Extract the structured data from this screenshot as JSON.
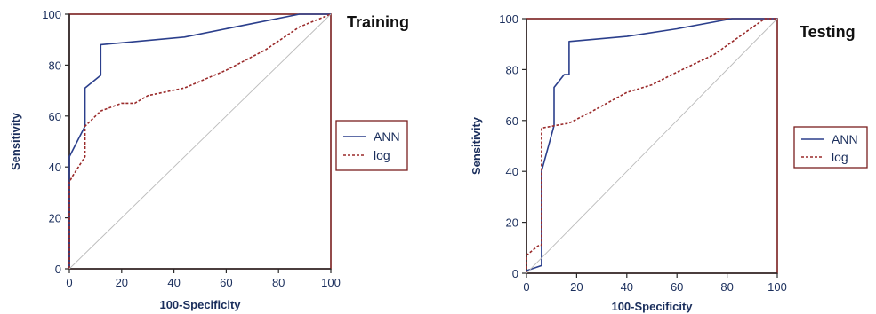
{
  "chart_data": [
    {
      "type": "line",
      "title": "Training",
      "xlabel": "100-Specificity",
      "ylabel": "Sensitivity",
      "xlim": [
        0,
        100
      ],
      "ylim": [
        0,
        100
      ],
      "xticks": [
        "0",
        "20",
        "40",
        "60",
        "80",
        "100"
      ],
      "yticks": [
        "0",
        "20",
        "40",
        "60",
        "80",
        "100"
      ],
      "grid": false,
      "legend_position": "right",
      "series": [
        {
          "name": "ANN",
          "color": "#2b3f8c",
          "style": "solid",
          "x": [
            0,
            0,
            6,
            6,
            12,
            12,
            44,
            88,
            100
          ],
          "y": [
            0,
            44,
            56,
            71,
            76,
            88,
            91,
            100,
            100
          ]
        },
        {
          "name": "log",
          "color": "#9a2a2a",
          "style": "dashed",
          "x": [
            0,
            0,
            1,
            6,
            6,
            12,
            20,
            25,
            30,
            44,
            60,
            75,
            88,
            100
          ],
          "y": [
            0,
            34,
            36,
            44,
            56,
            62,
            65,
            65,
            68,
            71,
            78,
            86,
            95,
            100
          ]
        },
        {
          "name": "reference",
          "color": "#bbbbbb",
          "style": "solid",
          "x": [
            0,
            100
          ],
          "y": [
            0,
            100
          ]
        }
      ]
    },
    {
      "type": "line",
      "title": "Testing",
      "xlabel": "100-Specificity",
      "ylabel": "Sensitivity",
      "xlim": [
        0,
        100
      ],
      "ylim": [
        0,
        100
      ],
      "xticks": [
        "0",
        "20",
        "40",
        "60",
        "80",
        "100"
      ],
      "yticks": [
        "0",
        "20",
        "40",
        "60",
        "80",
        "100"
      ],
      "grid": false,
      "legend_position": "right",
      "series": [
        {
          "name": "ANN",
          "color": "#2b3f8c",
          "style": "solid",
          "x": [
            0,
            0,
            6,
            6,
            11,
            11,
            15,
            17,
            17,
            40,
            60,
            82,
            100
          ],
          "y": [
            0,
            1,
            3,
            40,
            58,
            73,
            78,
            78,
            91,
            93,
            96,
            100,
            100
          ]
        },
        {
          "name": "log",
          "color": "#9a2a2a",
          "style": "dashed",
          "x": [
            0,
            0,
            5,
            6,
            6,
            17,
            25,
            40,
            50,
            60,
            75,
            95,
            100
          ],
          "y": [
            0,
            7,
            11,
            11,
            57,
            59,
            63,
            71,
            74,
            79,
            86,
            100,
            100
          ]
        },
        {
          "name": "reference",
          "color": "#bbbbbb",
          "style": "solid",
          "x": [
            0,
            100
          ],
          "y": [
            0,
            100
          ]
        }
      ]
    }
  ]
}
